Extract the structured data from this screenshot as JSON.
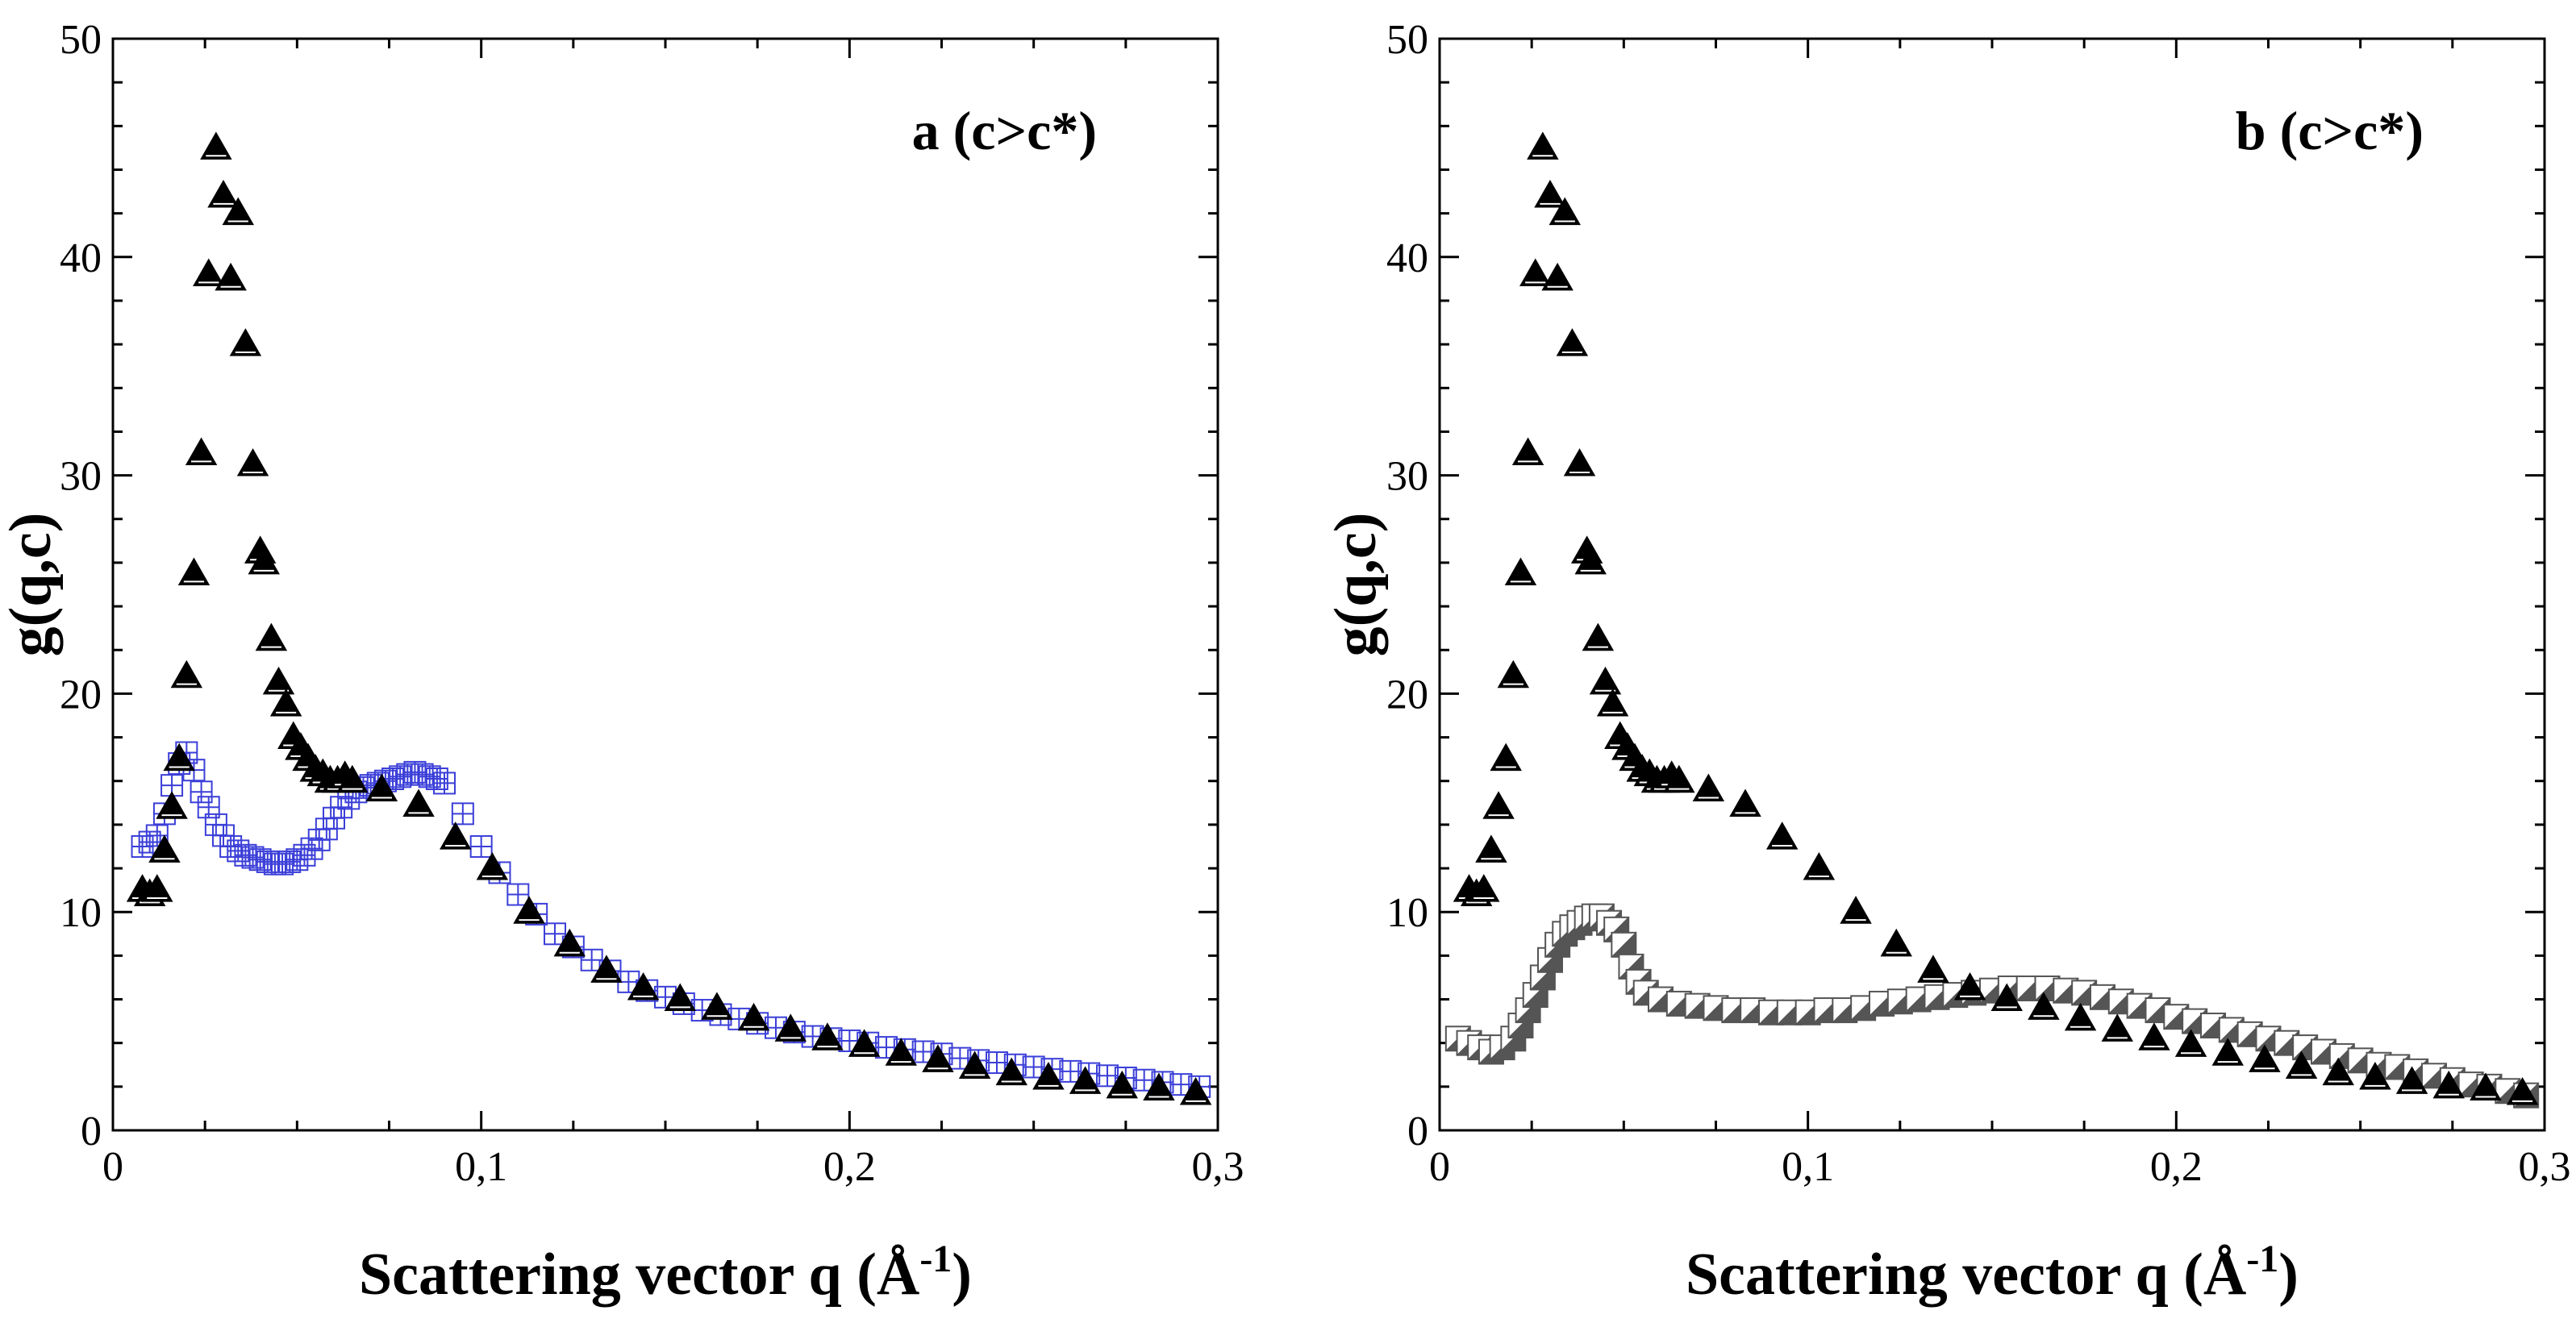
{
  "chart_data": [
    {
      "type": "scatter",
      "panel_label": "a (c>c*)",
      "xlabel": "Scattering  vector q (Å",
      "xlabel_superscript": "-1",
      "xlabel_suffix": ")",
      "ylabel": "g(q,c)",
      "xlim": [
        0,
        0.3
      ],
      "ylim": [
        0,
        50
      ],
      "x_ticks": [
        0,
        0.1,
        0.2,
        0.3
      ],
      "x_tick_labels": [
        "0",
        "0,1",
        "0,2",
        "0,3"
      ],
      "y_ticks": [
        0,
        10,
        20,
        30,
        40,
        50
      ],
      "y_tick_labels": [
        "0",
        "10",
        "20",
        "30",
        "40",
        "50"
      ],
      "series": [
        {
          "name": "filled triangles",
          "marker": "triangle",
          "color": "#000000",
          "x": [
            0.008,
            0.01,
            0.012,
            0.014,
            0.016,
            0.018,
            0.02,
            0.022,
            0.024,
            0.026,
            0.028,
            0.03,
            0.032,
            0.034,
            0.036,
            0.038,
            0.04,
            0.041,
            0.043,
            0.045,
            0.047,
            0.049,
            0.051,
            0.053,
            0.055,
            0.057,
            0.059,
            0.061,
            0.063,
            0.065,
            0.073,
            0.083,
            0.093,
            0.103,
            0.113,
            0.124,
            0.134,
            0.144,
            0.154,
            0.164,
            0.174,
            0.184,
            0.194,
            0.204,
            0.214,
            0.224,
            0.234,
            0.244,
            0.254,
            0.264,
            0.274,
            0.284,
            0.294
          ],
          "y": [
            11,
            10.8,
            11,
            12.8,
            14.8,
            17,
            20.8,
            25.5,
            31,
            39.2,
            45,
            42.8,
            39,
            42,
            36,
            30.5,
            26.5,
            26,
            22.5,
            20.5,
            19.5,
            18,
            17.5,
            17,
            16.5,
            16.3,
            16,
            16,
            16.2,
            16,
            15.6,
            14.9,
            13.4,
            12,
            10,
            8.5,
            7.3,
            6.5,
            6,
            5.6,
            5.1,
            4.6,
            4.2,
            3.9,
            3.5,
            3.2,
            2.9,
            2.6,
            2.4,
            2.2,
            2,
            1.9,
            1.7
          ]
        },
        {
          "name": "open crosses",
          "marker": "cross",
          "color": "#3b3fd8",
          "x": [
            0.008,
            0.01,
            0.012,
            0.014,
            0.016,
            0.018,
            0.02,
            0.022,
            0.024,
            0.026,
            0.028,
            0.03,
            0.032,
            0.034,
            0.036,
            0.038,
            0.04,
            0.042,
            0.044,
            0.046,
            0.048,
            0.05,
            0.052,
            0.054,
            0.056,
            0.058,
            0.06,
            0.062,
            0.064,
            0.066,
            0.068,
            0.07,
            0.072,
            0.074,
            0.076,
            0.078,
            0.08,
            0.082,
            0.084,
            0.086,
            0.088,
            0.09,
            0.095,
            0.1,
            0.105,
            0.11,
            0.115,
            0.12,
            0.125,
            0.13,
            0.135,
            0.14,
            0.145,
            0.15,
            0.155,
            0.16,
            0.165,
            0.17,
            0.175,
            0.18,
            0.185,
            0.19,
            0.195,
            0.2,
            0.205,
            0.21,
            0.215,
            0.22,
            0.225,
            0.23,
            0.235,
            0.24,
            0.245,
            0.25,
            0.255,
            0.26,
            0.265,
            0.27,
            0.275,
            0.28,
            0.285,
            0.29,
            0.295
          ],
          "y": [
            13,
            13.2,
            13.5,
            14.5,
            15.8,
            16.8,
            17.3,
            16.5,
            15.5,
            14.8,
            14,
            13.5,
            13,
            12.8,
            12.6,
            12.5,
            12.4,
            12.3,
            12.2,
            12.2,
            12.3,
            12.4,
            12.6,
            12.9,
            13.3,
            13.8,
            14.3,
            14.8,
            15.2,
            15.5,
            15.7,
            15.8,
            15.9,
            16,
            16.1,
            16.2,
            16.3,
            16.4,
            16.3,
            16.2,
            16.1,
            15.9,
            14.5,
            13,
            11.8,
            10.8,
            9.9,
            9,
            8.4,
            7.8,
            7.3,
            6.8,
            6.4,
            6.1,
            5.8,
            5.5,
            5.3,
            5.1,
            4.9,
            4.7,
            4.5,
            4.3,
            4.2,
            4.1,
            4,
            3.8,
            3.7,
            3.6,
            3.5,
            3.3,
            3.2,
            3.1,
            3,
            2.9,
            2.8,
            2.7,
            2.6,
            2.5,
            2.4,
            2.3,
            2.2,
            2.1,
            2
          ]
        }
      ]
    },
    {
      "type": "scatter",
      "panel_label": "b (c>c*)",
      "xlabel": "Scattering  vector q (Å",
      "xlabel_superscript": "-1",
      "xlabel_suffix": ")",
      "ylabel": "g(q,c)",
      "xlim": [
        0,
        0.3
      ],
      "ylim": [
        0,
        50
      ],
      "x_ticks": [
        0,
        0.1,
        0.2,
        0.3
      ],
      "x_tick_labels": [
        "0",
        "0,1",
        "0,2",
        "0,3"
      ],
      "y_ticks": [
        0,
        10,
        20,
        30,
        40,
        50
      ],
      "y_tick_labels": [
        "0",
        "10",
        "20",
        "30",
        "40",
        "50"
      ],
      "series": [
        {
          "name": "filled triangles",
          "marker": "triangle",
          "color": "#000000",
          "x": [
            0.008,
            0.01,
            0.012,
            0.014,
            0.016,
            0.018,
            0.02,
            0.022,
            0.024,
            0.026,
            0.028,
            0.03,
            0.032,
            0.034,
            0.036,
            0.038,
            0.04,
            0.041,
            0.043,
            0.045,
            0.047,
            0.049,
            0.051,
            0.053,
            0.055,
            0.057,
            0.059,
            0.061,
            0.063,
            0.065,
            0.073,
            0.083,
            0.093,
            0.103,
            0.113,
            0.124,
            0.134,
            0.144,
            0.154,
            0.164,
            0.174,
            0.184,
            0.194,
            0.204,
            0.214,
            0.224,
            0.234,
            0.244,
            0.254,
            0.264,
            0.274,
            0.284,
            0.294
          ],
          "y": [
            11,
            10.8,
            11,
            12.8,
            14.8,
            17,
            20.8,
            25.5,
            31,
            39.2,
            45,
            42.8,
            39,
            42,
            36,
            30.5,
            26.5,
            26,
            22.5,
            20.5,
            19.5,
            18,
            17.5,
            17,
            16.5,
            16.3,
            16,
            16,
            16.2,
            16,
            15.6,
            14.9,
            13.4,
            12,
            10,
            8.5,
            7.3,
            6.5,
            6,
            5.6,
            5.1,
            4.6,
            4.2,
            3.9,
            3.5,
            3.2,
            2.9,
            2.6,
            2.4,
            2.2,
            2,
            1.9,
            1.7
          ]
        },
        {
          "name": "open squares / half-filled triangles",
          "marker": "square",
          "color": "#555555",
          "x": [
            0.005,
            0.008,
            0.011,
            0.014,
            0.017,
            0.02,
            0.022,
            0.024,
            0.026,
            0.028,
            0.03,
            0.032,
            0.034,
            0.036,
            0.038,
            0.04,
            0.042,
            0.044,
            0.046,
            0.048,
            0.05,
            0.052,
            0.054,
            0.056,
            0.06,
            0.065,
            0.07,
            0.075,
            0.08,
            0.085,
            0.09,
            0.095,
            0.1,
            0.105,
            0.11,
            0.115,
            0.12,
            0.125,
            0.13,
            0.135,
            0.14,
            0.145,
            0.15,
            0.155,
            0.16,
            0.165,
            0.17,
            0.175,
            0.18,
            0.185,
            0.19,
            0.195,
            0.2,
            0.205,
            0.21,
            0.215,
            0.22,
            0.225,
            0.23,
            0.235,
            0.24,
            0.245,
            0.25,
            0.255,
            0.26,
            0.265,
            0.27,
            0.275,
            0.28,
            0.285,
            0.29,
            0.295
          ],
          "y": [
            4.2,
            4,
            3.8,
            3.6,
            3.8,
            4.2,
            4.8,
            5.5,
            6.2,
            7,
            7.8,
            8.5,
            9,
            9.3,
            9.5,
            9.7,
            9.8,
            9.8,
            9.5,
            9.2,
            8.5,
            7.5,
            6.8,
            6.3,
            6,
            5.8,
            5.7,
            5.6,
            5.5,
            5.5,
            5.4,
            5.4,
            5.4,
            5.5,
            5.5,
            5.6,
            5.8,
            5.9,
            6,
            6.1,
            6.2,
            6.3,
            6.4,
            6.5,
            6.5,
            6.5,
            6.4,
            6.3,
            6.1,
            5.9,
            5.7,
            5.5,
            5.2,
            5,
            4.8,
            4.6,
            4.4,
            4.2,
            4,
            3.8,
            3.6,
            3.4,
            3.2,
            3,
            2.9,
            2.7,
            2.5,
            2.3,
            2.1,
            2,
            1.8,
            1.6
          ]
        }
      ]
    }
  ]
}
